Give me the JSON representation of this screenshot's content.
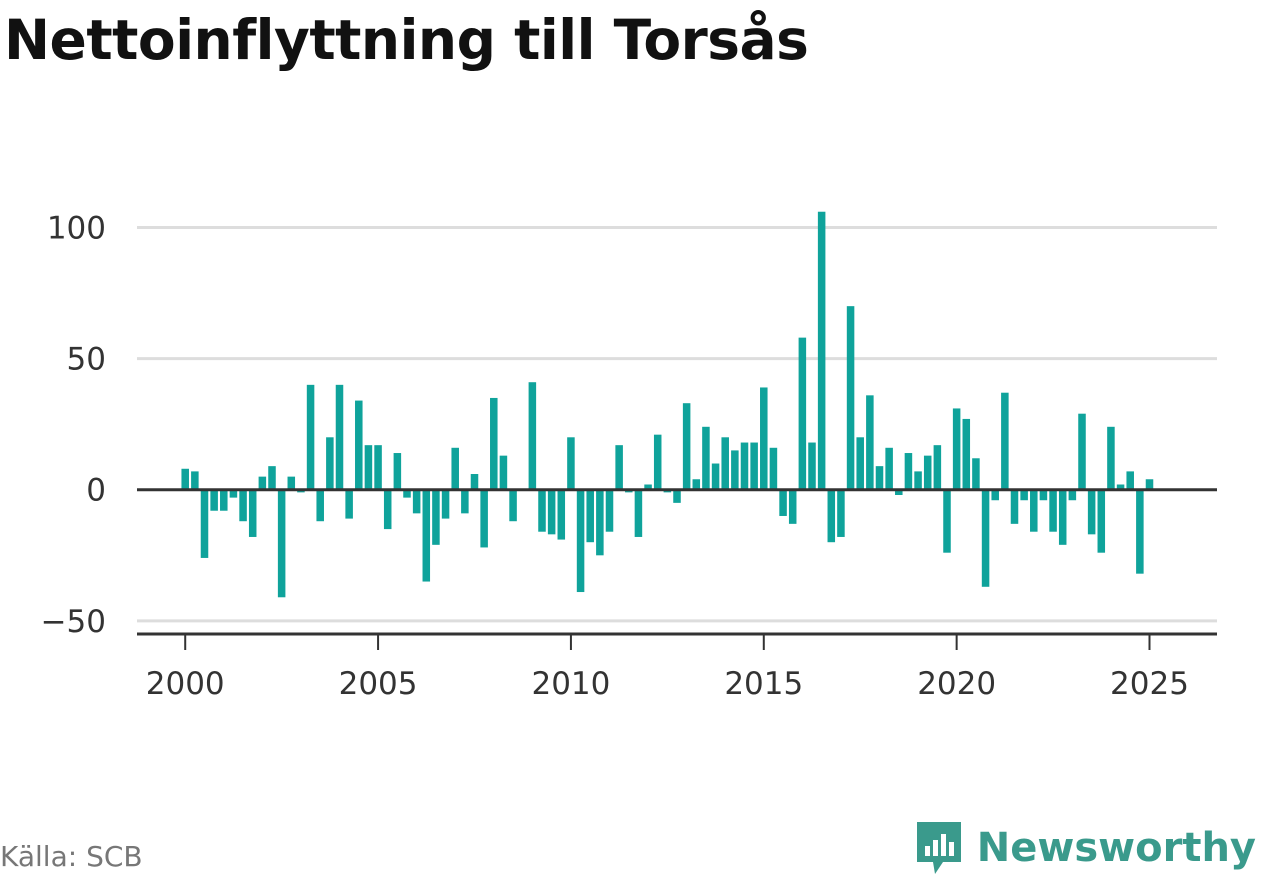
{
  "title": "Nettoinflyttning till Torsås",
  "source": "Källa: SCB",
  "brand": {
    "name": "Newsworthy",
    "icon": "newsworthy-logo-icon",
    "color": "#3a9a8c"
  },
  "colors": {
    "bar": "#0fa39b",
    "grid": "#dddddd",
    "axis": "#333333",
    "text": "#333333"
  },
  "chart_data": {
    "type": "bar",
    "title": "Nettoinflyttning till Torsås",
    "xlabel": "",
    "ylabel": "",
    "x_start": 2000.0,
    "x_step": 0.25,
    "xlim": [
      1998.75,
      2026.75
    ],
    "ylim": [
      -55,
      112
    ],
    "x_ticks": [
      2000,
      2005,
      2010,
      2015,
      2020,
      2025
    ],
    "y_ticks": [
      -50,
      0,
      50,
      100
    ],
    "y_tick_labels": [
      "−50",
      "0",
      "50",
      "100"
    ],
    "grid": true,
    "values": [
      8,
      7,
      -26,
      -8,
      -8,
      -3,
      -12,
      -18,
      5,
      9,
      -41,
      5,
      -1,
      40,
      -12,
      20,
      40,
      -11,
      34,
      17,
      17,
      -15,
      14,
      -3,
      -9,
      -35,
      -21,
      -11,
      16,
      -9,
      6,
      -22,
      35,
      13,
      -12,
      0,
      41,
      -16,
      -17,
      -19,
      20,
      -39,
      -20,
      -25,
      -16,
      17,
      -1,
      -18,
      2,
      21,
      -1,
      -5,
      33,
      4,
      24,
      10,
      20,
      15,
      18,
      18,
      39,
      16,
      -10,
      -13,
      58,
      18,
      106,
      -20,
      -18,
      70,
      20,
      36,
      9,
      16,
      -2,
      14,
      7,
      13,
      17,
      -24,
      31,
      27,
      12,
      -37,
      -4,
      37,
      -13,
      -4,
      -16,
      -4,
      -16,
      -21,
      -4,
      29,
      -17,
      -24,
      24,
      2,
      7,
      -32,
      4
    ]
  }
}
